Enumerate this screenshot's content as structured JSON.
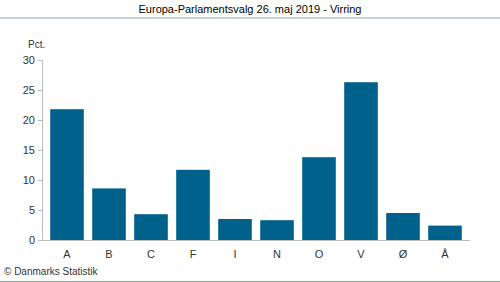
{
  "chart_data": {
    "type": "bar",
    "title": "Europa-Parlamentsvalg 26. maj 2019 - Virring",
    "ylabel": "Pct.",
    "source": "© Danmarks Statistik",
    "categories": [
      "A",
      "B",
      "C",
      "F",
      "I",
      "N",
      "O",
      "V",
      "Ø",
      "Å"
    ],
    "values": [
      21.8,
      8.6,
      4.3,
      11.7,
      3.5,
      3.3,
      13.8,
      26.3,
      4.5,
      2.4
    ],
    "color": "#00628b",
    "ylim": [
      0,
      30
    ],
    "yticks": [
      0,
      5,
      10,
      15,
      20,
      25,
      30
    ],
    "grid": false
  }
}
